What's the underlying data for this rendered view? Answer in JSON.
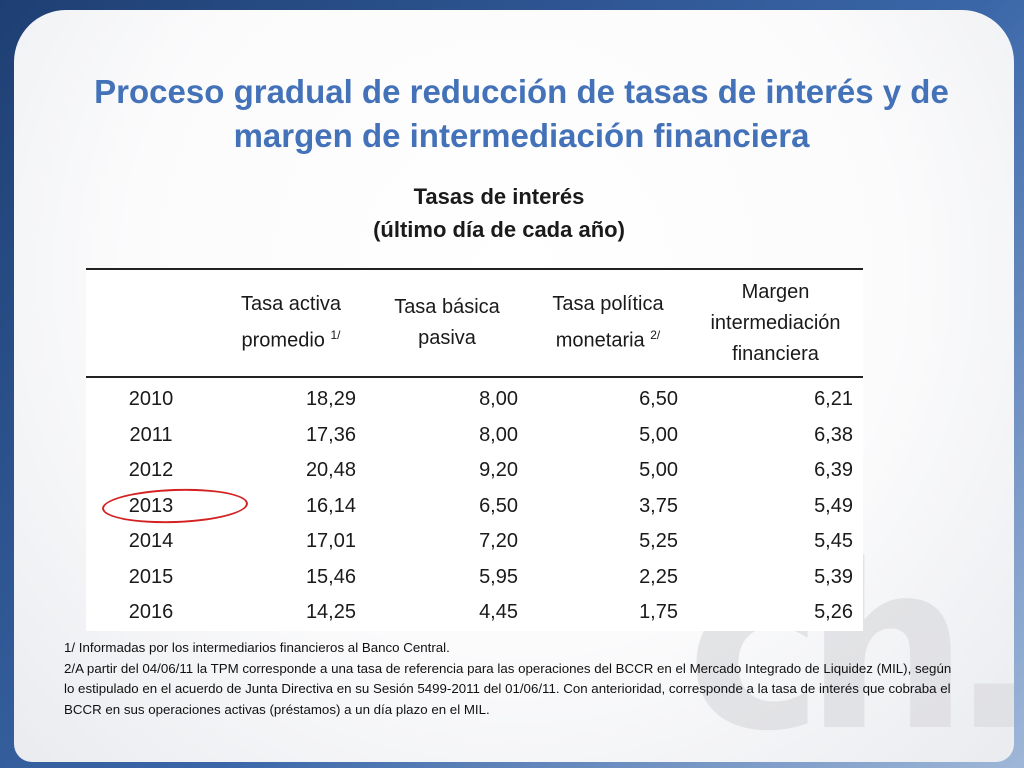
{
  "title": "Proceso gradual de reducción de tasas de interés y de margen de intermediación financiera",
  "subtitle": {
    "line1": "Tasas de interés",
    "line2": "(último día de cada año)"
  },
  "table": {
    "headers": [
      {
        "text": "",
        "sup": ""
      },
      {
        "text": "Tasa activa promedio",
        "sup": "1/"
      },
      {
        "text": "Tasa básica pasiva",
        "sup": ""
      },
      {
        "text": "Tasa política monetaria",
        "sup": "2/"
      },
      {
        "text": "Margen intermediación financiera",
        "sup": ""
      }
    ],
    "rows": [
      [
        "2010",
        "18,29",
        "8,00",
        "6,50",
        "6,21"
      ],
      [
        "2011",
        "17,36",
        "8,00",
        "5,00",
        "6,38"
      ],
      [
        "2012",
        "20,48",
        "9,20",
        "5,00",
        "6,39"
      ],
      [
        "2013",
        "16,14",
        "6,50",
        "3,75",
        "5,49"
      ],
      [
        "2014",
        "17,01",
        "7,20",
        "5,25",
        "5,45"
      ],
      [
        "2015",
        "15,46",
        "5,95",
        "2,25",
        "5,39"
      ],
      [
        "2016",
        "14,25",
        "4,45",
        "1,75",
        "5,26"
      ]
    ],
    "highlighted_year": "2013"
  },
  "notes": [
    "1/ Informadas por los intermediarios financieros al Banco Central.",
    "2/A partir del 04/06/11 la TPM corresponde a una tasa de referencia para las operaciones del BCCR en el Mercado Integrado de Liquidez (MIL), según lo estipulado en el acuerdo de Junta Directiva en su Sesión 5499-2011 del 01/06/11.  Con anterioridad, corresponde a la tasa de interés que cobraba el BCCR en sus operaciones activas (préstamos) a un día plazo en el MIL."
  ],
  "colors": {
    "title": "#4472b8",
    "highlight": "#d42020",
    "frame": "#2b4f86"
  }
}
